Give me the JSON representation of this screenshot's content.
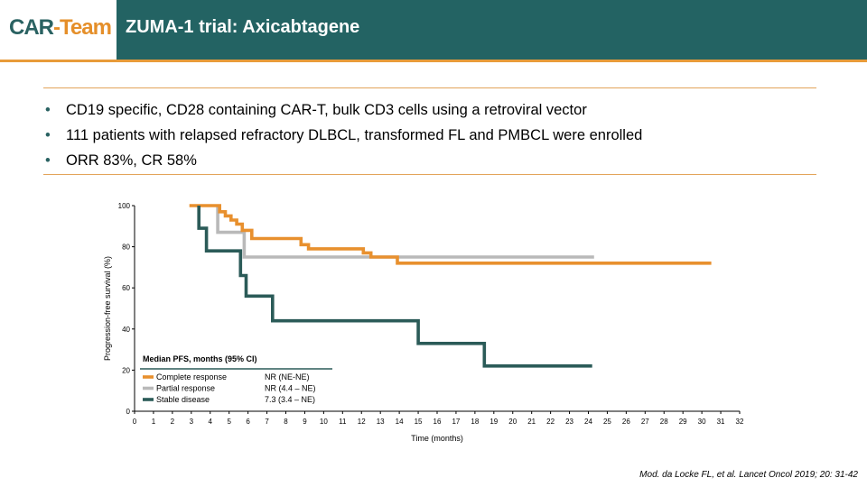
{
  "logo": {
    "part1": "CAR",
    "part2": "-Team"
  },
  "header": {
    "title": "ZUMA-1 trial: Axicabtagene"
  },
  "bullets": [
    "CD19 specific, CD28 containing CAR-T, bulk CD3 cells using a retroviral vector",
    "111 patients with relapsed refractory DLBCL, transformed FL and PMBCL were enrolled",
    "ORR 83%, CR 58%"
  ],
  "citation": "Mod. da Locke FL, et al. Lancet Oncol 2019; 20: 31-42",
  "colors": {
    "header_bg": "#236363",
    "accent": "#e89b3a"
  },
  "chart_data": {
    "type": "line",
    "step": true,
    "xlabel": "Time (months)",
    "ylabel": "Progression-free survival (%)",
    "xlim": [
      0,
      32
    ],
    "ylim": [
      0,
      100
    ],
    "xticks": [
      "0",
      "1",
      "2",
      "3",
      "4",
      "5",
      "6",
      "7",
      "8",
      "9",
      "10",
      "11",
      "12",
      "13",
      "14",
      "15",
      "16",
      "17",
      "18",
      "19",
      "20",
      "21",
      "22",
      "23",
      "24",
      "25",
      "26",
      "27",
      "28",
      "29",
      "30",
      "31",
      "32"
    ],
    "yticks": [
      "0",
      "20",
      "40",
      "60",
      "80",
      "100"
    ],
    "legend": {
      "title": "Median PFS, months (95% CI)",
      "placement": "bottom-left",
      "entries": [
        {
          "label": "Complete response",
          "value": "NR (NE-NE)"
        },
        {
          "label": "Partial response",
          "value": "NR (4.4 – NE)"
        },
        {
          "label": "Stable disease",
          "value": "7.3 (3.4 – NE)"
        }
      ]
    },
    "series": [
      {
        "name": "Complete response",
        "color": "#e8902e",
        "x": [
          2.9,
          4.5,
          4.5,
          4.8,
          4.8,
          5.1,
          5.1,
          5.4,
          5.4,
          5.7,
          5.7,
          6.2,
          6.2,
          8.8,
          8.8,
          9.2,
          9.2,
          12.1,
          12.1,
          12.5,
          12.5,
          13.9,
          13.9,
          30.5
        ],
        "y": [
          100,
          100,
          97,
          97,
          95,
          95,
          93,
          93,
          91,
          91,
          88,
          88,
          84,
          84,
          81,
          81,
          79,
          79,
          77,
          77,
          75,
          75,
          72,
          72
        ]
      },
      {
        "name": "Partial response",
        "color": "#b9b9b9",
        "x": [
          4.4,
          4.4,
          5.8,
          5.8,
          24.3
        ],
        "y": [
          100,
          87,
          87,
          75,
          75
        ]
      },
      {
        "name": "Stable disease",
        "color": "#2b5b58",
        "x": [
          3.4,
          3.4,
          3.8,
          3.8,
          5.6,
          5.6,
          5.9,
          5.9,
          7.3,
          7.3,
          15.0,
          15.0,
          18.5,
          18.5,
          24.2
        ],
        "y": [
          100,
          89,
          89,
          78,
          78,
          66,
          66,
          56,
          56,
          44,
          44,
          33,
          33,
          22,
          22
        ]
      }
    ]
  }
}
